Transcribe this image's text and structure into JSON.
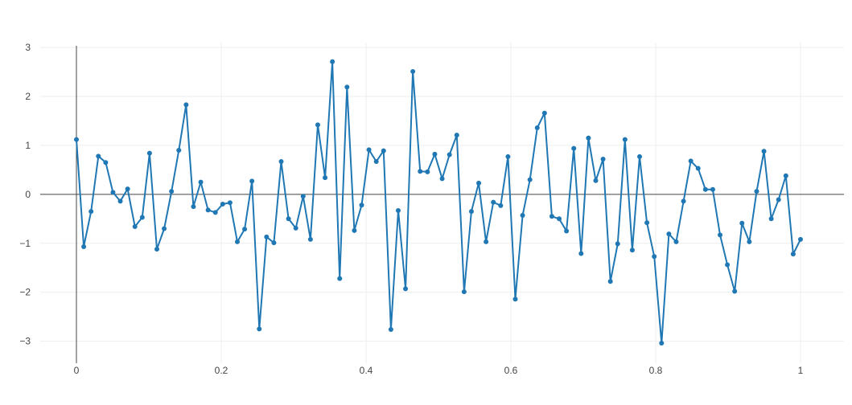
{
  "chart_data": {
    "type": "line",
    "title": "",
    "xlabel": "",
    "ylabel": "",
    "xlim": [
      -0.05,
      1.06
    ],
    "ylim": [
      -3.45,
      3.1
    ],
    "grid": true,
    "mode": "lines+markers",
    "x_ticks": [
      0,
      0.2,
      0.4,
      0.6,
      0.8,
      1
    ],
    "x_tick_labels": [
      "0",
      "0.2",
      "0.4",
      "0.6",
      "0.8",
      "1"
    ],
    "y_ticks": [
      -3,
      -2,
      -1,
      0,
      1,
      2,
      3
    ],
    "y_tick_labels": [
      "−3",
      "−2",
      "−1",
      "0",
      "1",
      "2",
      "3"
    ],
    "series": [
      {
        "color": "#1f77b4",
        "x": [
          0,
          0.0101,
          0.0202,
          0.0303,
          0.0404,
          0.0505,
          0.0606,
          0.0707,
          0.0808,
          0.0909,
          0.101,
          0.1111,
          0.1212,
          0.1313,
          0.1414,
          0.1515,
          0.1616,
          0.1717,
          0.1818,
          0.1919,
          0.202,
          0.2121,
          0.2222,
          0.2323,
          0.2424,
          0.2525,
          0.2626,
          0.2727,
          0.2828,
          0.2929,
          0.303,
          0.3131,
          0.3232,
          0.3333,
          0.3434,
          0.3535,
          0.3636,
          0.3737,
          0.3838,
          0.3939,
          0.404,
          0.4141,
          0.4242,
          0.4343,
          0.4444,
          0.4545,
          0.4646,
          0.4747,
          0.4848,
          0.4949,
          0.5051,
          0.5152,
          0.5253,
          0.5354,
          0.5455,
          0.5556,
          0.5657,
          0.5758,
          0.5859,
          0.596,
          0.6061,
          0.6162,
          0.6263,
          0.6364,
          0.6465,
          0.6566,
          0.6667,
          0.6768,
          0.6869,
          0.697,
          0.7071,
          0.7172,
          0.7273,
          0.7374,
          0.7475,
          0.7576,
          0.7677,
          0.7778,
          0.7879,
          0.798,
          0.8081,
          0.8182,
          0.8283,
          0.8384,
          0.8485,
          0.8586,
          0.8687,
          0.8788,
          0.8889,
          0.899,
          0.9091,
          0.9192,
          0.9293,
          0.9394,
          0.9495,
          0.9596,
          0.9697,
          0.9798,
          0.9899,
          1.0
        ],
        "y": [
          1.12,
          -1.07,
          -0.35,
          0.78,
          0.65,
          0.04,
          -0.14,
          0.11,
          -0.66,
          -0.47,
          0.84,
          -1.12,
          -0.7,
          0.06,
          0.9,
          1.83,
          -0.25,
          0.25,
          -0.32,
          -0.37,
          -0.2,
          -0.17,
          -0.97,
          -0.71,
          0.27,
          -2.75,
          -0.87,
          -0.99,
          0.67,
          -0.5,
          -0.69,
          -0.04,
          -0.92,
          1.42,
          0.34,
          2.71,
          -1.72,
          2.19,
          -0.74,
          -0.22,
          0.91,
          0.67,
          0.89,
          -2.76,
          -0.33,
          -1.93,
          2.51,
          0.47,
          0.46,
          0.82,
          0.32,
          0.81,
          1.21,
          -1.99,
          -0.35,
          0.23,
          -0.97,
          -0.16,
          -0.23,
          0.77,
          -2.14,
          -0.43,
          0.3,
          1.36,
          1.66,
          -0.45,
          -0.5,
          -0.75,
          0.94,
          -1.21,
          1.15,
          0.28,
          0.72,
          -1.78,
          -1.01,
          1.12,
          -1.14,
          0.77,
          -0.58,
          -1.27,
          -3.04,
          -0.81,
          -0.97,
          -0.14,
          0.68,
          0.53,
          0.1,
          0.1,
          -0.83,
          -1.44,
          -1.98,
          -0.59,
          -0.97,
          0.06,
          0.88,
          -0.5,
          -0.11,
          0.38,
          -1.22,
          -0.92
        ]
      }
    ]
  }
}
